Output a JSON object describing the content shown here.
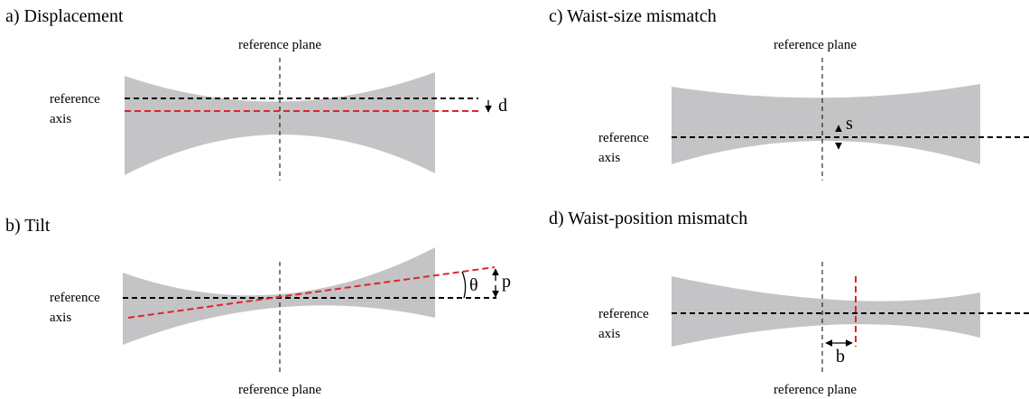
{
  "panels": {
    "a": {
      "title": "a) Displacement",
      "plane_label": "reference plane",
      "axis_label_line1": "reference",
      "axis_label_line2": "axis",
      "symbol": "d"
    },
    "b": {
      "title": "b)  Tilt",
      "plane_label": "reference plane",
      "axis_label_line1": "reference",
      "axis_label_line2": "axis",
      "angle_symbol": "θ",
      "symbol": "p"
    },
    "c": {
      "title": "c) Waist-size mismatch",
      "plane_label": "reference plane",
      "axis_label_line1": "reference",
      "axis_label_line2": "axis",
      "symbol": "s"
    },
    "d": {
      "title": "d)  Waist-position mismatch",
      "plane_label": "reference plane",
      "axis_label_line1": "reference",
      "axis_label_line2": "axis",
      "symbol": "b"
    }
  },
  "colors": {
    "beam": "#c4c4c6",
    "reference": "#000000",
    "mismatch": "#e0242c"
  }
}
